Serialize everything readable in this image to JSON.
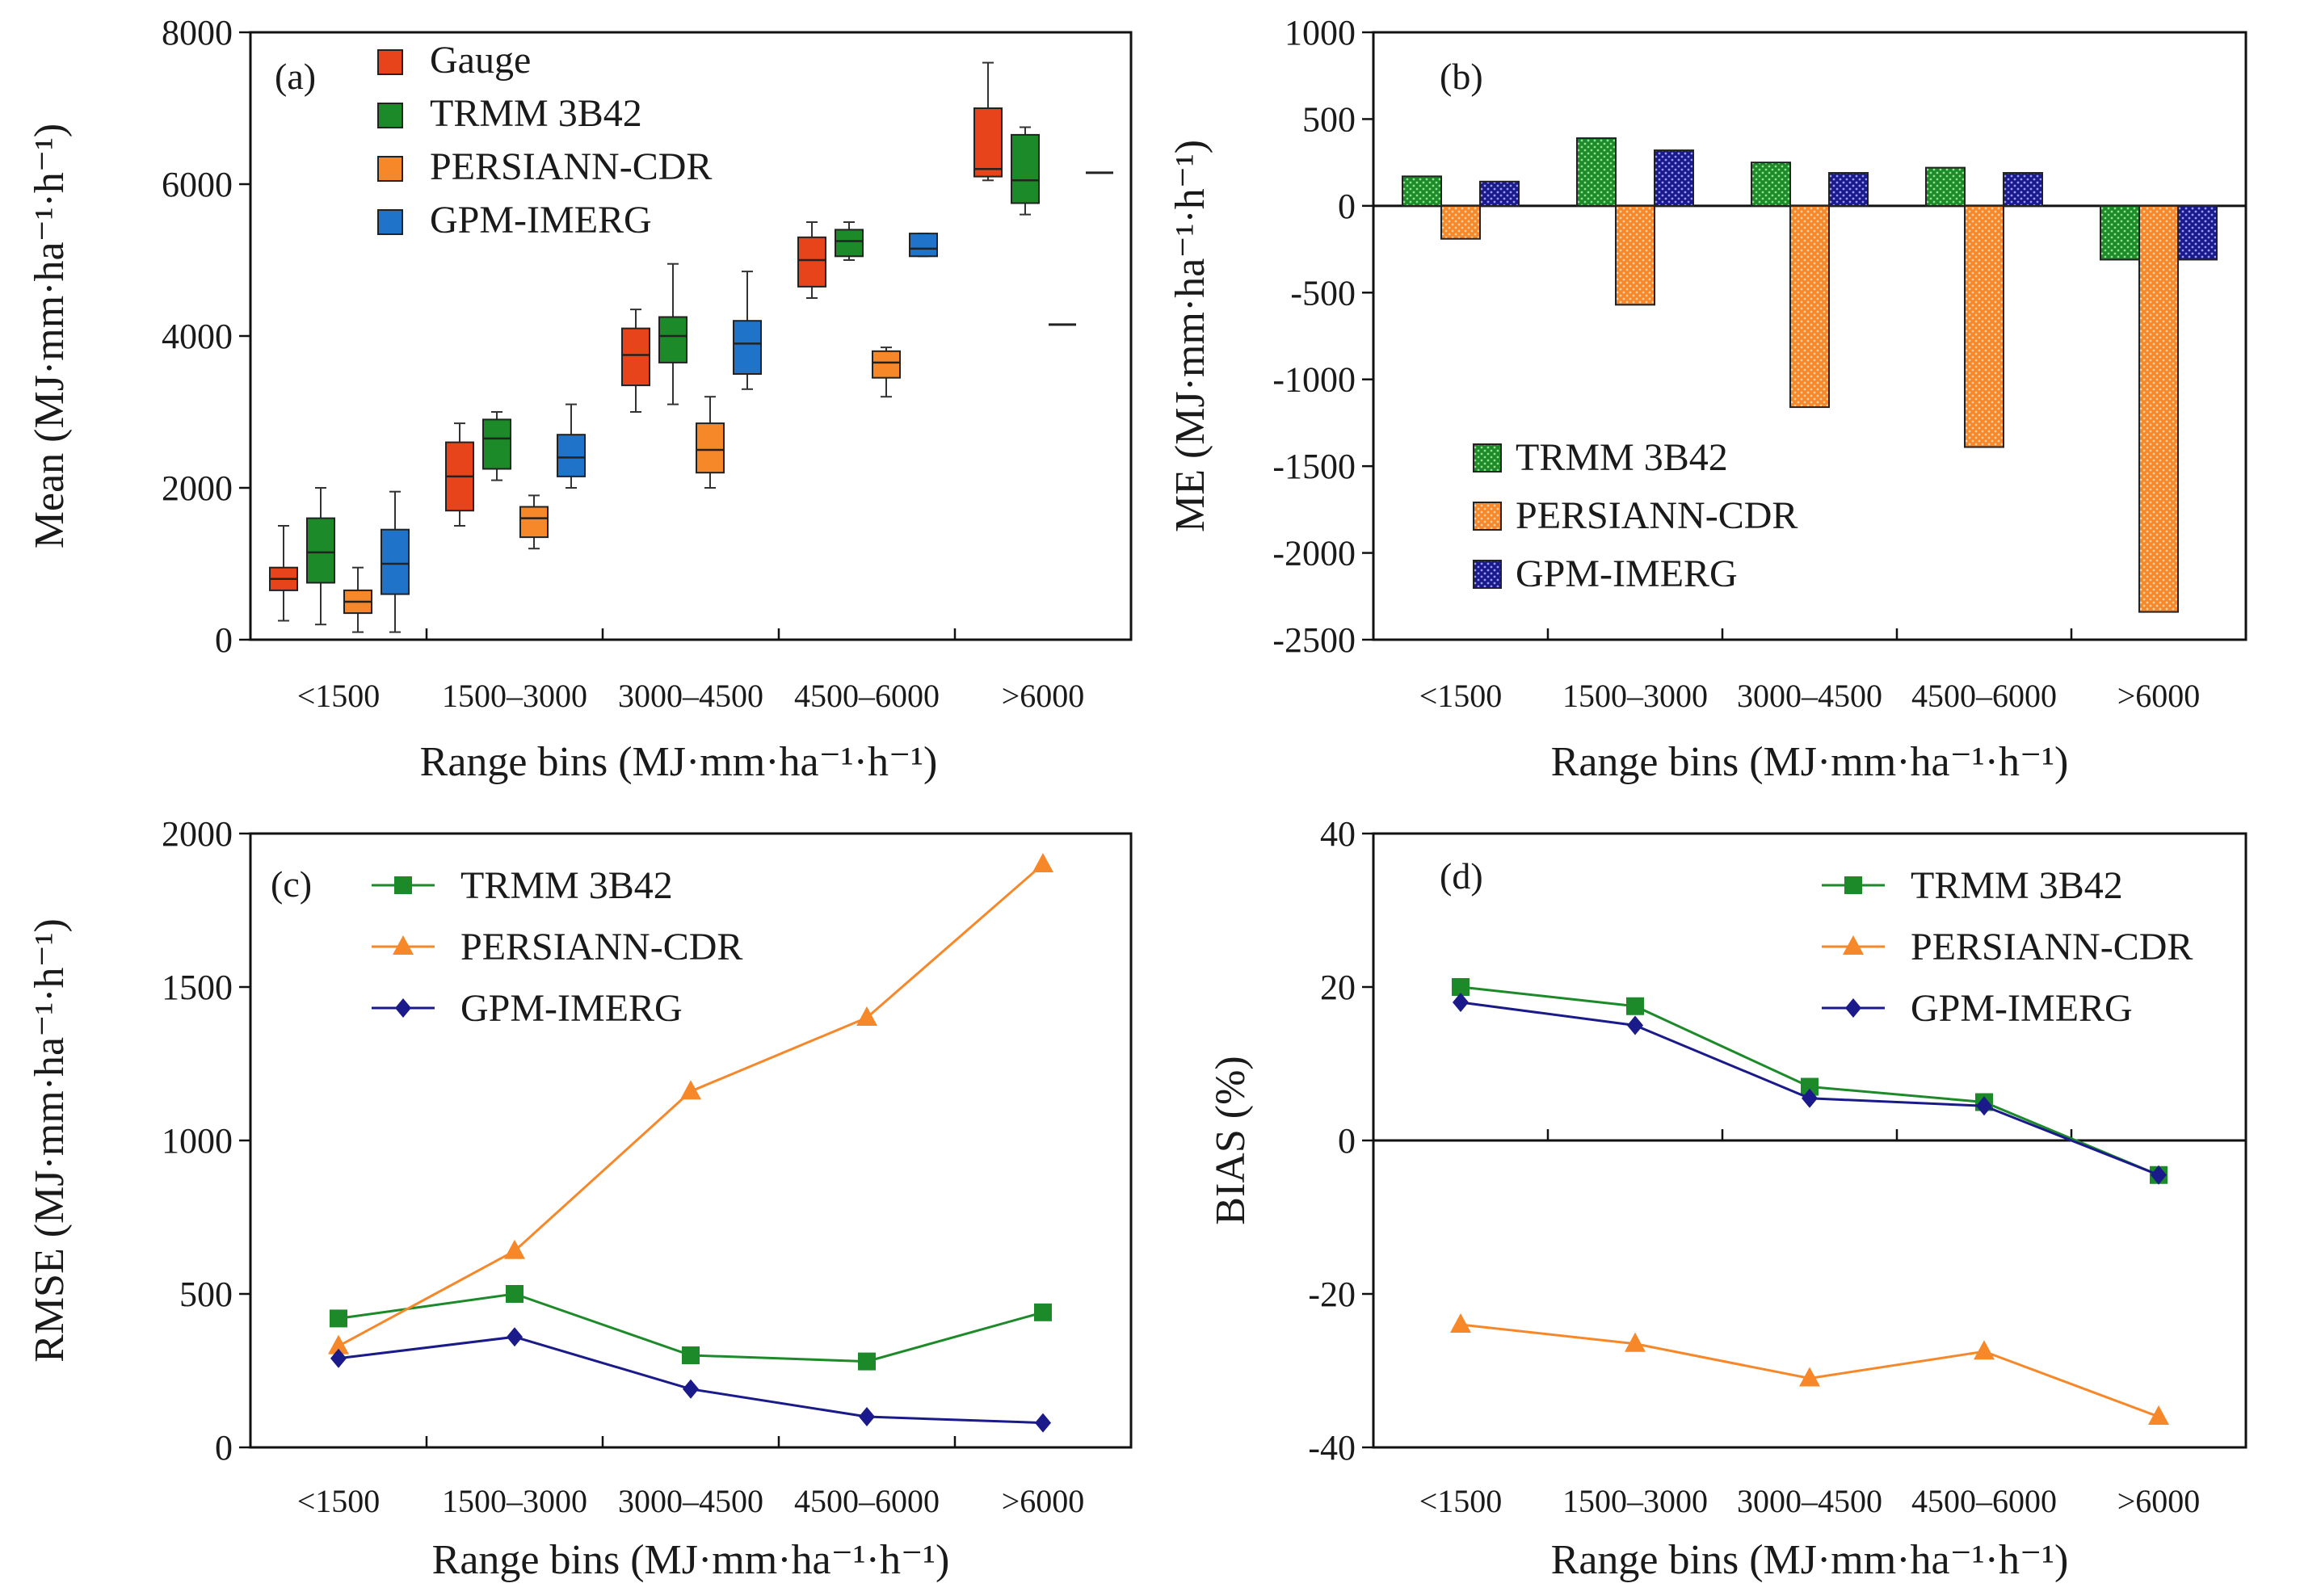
{
  "colors": {
    "gauge": "#e8441c",
    "trmm": "#1d8a2a",
    "persiann": "#f7882a",
    "gpm": "#1f74c9",
    "gpm_dark": "#1a1a8a",
    "axis": "#111111"
  },
  "chart_data": [
    {
      "panel": "(a)",
      "type": "box",
      "ylabel": "Mean (MJ·mm·ha⁻¹·h⁻¹)",
      "xlabel": "Range bins (MJ·mm·ha⁻¹·h⁻¹)",
      "categories": [
        "<1500",
        "1500–3000",
        "3000–4500",
        "4500–6000",
        ">6000"
      ],
      "ylim": [
        0,
        8000
      ],
      "yticks": [
        "8000",
        "6000",
        "4000",
        "2000",
        "0"
      ],
      "series": [
        {
          "name": "Gauge",
          "boxes": [
            {
              "min": 250,
              "q1": 650,
              "median": 800,
              "q3": 950,
              "max": 1500
            },
            {
              "min": 1500,
              "q1": 1700,
              "median": 2150,
              "q3": 2600,
              "max": 2850
            },
            {
              "min": 3000,
              "q1": 3350,
              "median": 3750,
              "q3": 4100,
              "max": 4350
            },
            {
              "min": 4500,
              "q1": 4650,
              "median": 5000,
              "q3": 5300,
              "max": 5500
            },
            {
              "min": 6050,
              "q1": 6100,
              "median": 6200,
              "q3": 7000,
              "max": 7600
            }
          ]
        },
        {
          "name": "TRMM 3B42",
          "boxes": [
            {
              "min": 200,
              "q1": 750,
              "median": 1150,
              "q3": 1600,
              "max": 2000
            },
            {
              "min": 2100,
              "q1": 2250,
              "median": 2650,
              "q3": 2900,
              "max": 3000
            },
            {
              "min": 3100,
              "q1": 3650,
              "median": 4000,
              "q3": 4250,
              "max": 4950
            },
            {
              "min": 5000,
              "q1": 5050,
              "median": 5250,
              "q3": 5400,
              "max": 5500
            },
            {
              "min": 5600,
              "q1": 5750,
              "median": 6050,
              "q3": 6650,
              "max": 6750
            }
          ]
        },
        {
          "name": "PERSIANN-CDR",
          "boxes": [
            {
              "min": 100,
              "q1": 350,
              "median": 500,
              "q3": 650,
              "max": 950
            },
            {
              "min": 1200,
              "q1": 1350,
              "median": 1600,
              "q3": 1750,
              "max": 1900
            },
            {
              "min": 2000,
              "q1": 2200,
              "median": 2500,
              "q3": 2850,
              "max": 3200
            },
            {
              "min": 3200,
              "q1": 3450,
              "median": 3650,
              "q3": 3800,
              "max": 3850
            },
            {
              "min": 4150,
              "q1": 4150,
              "median": 4150,
              "q3": 4150,
              "max": 4150
            }
          ]
        },
        {
          "name": "GPM-IMERG",
          "boxes": [
            {
              "min": 100,
              "q1": 600,
              "median": 1000,
              "q3": 1450,
              "max": 1950
            },
            {
              "min": 2000,
              "q1": 2150,
              "median": 2400,
              "q3": 2700,
              "max": 3100
            },
            {
              "min": 3300,
              "q1": 3500,
              "median": 3900,
              "q3": 4200,
              "max": 4850
            },
            {
              "min": 5050,
              "q1": 5050,
              "median": 5150,
              "q3": 5350,
              "max": 5350
            },
            {
              "min": 6150,
              "q1": 6150,
              "median": 6150,
              "q3": 6150,
              "max": 6150
            }
          ]
        }
      ]
    },
    {
      "panel": "(b)",
      "type": "bar",
      "ylabel": "ME (MJ·mm·ha⁻¹·h⁻¹)",
      "xlabel": "Range bins (MJ·mm·ha⁻¹·h⁻¹)",
      "categories": [
        "<1500",
        "1500–3000",
        "3000–4500",
        "4500–6000",
        ">6000"
      ],
      "ylim": [
        -2500,
        1000
      ],
      "yticks": [
        "1000",
        "500",
        "0",
        "-500",
        "-1000",
        "-1500",
        "-2000",
        "-2500"
      ],
      "legend_position": "bottom-left",
      "series": [
        {
          "name": "TRMM 3B42",
          "values": [
            170,
            390,
            250,
            220,
            -310
          ]
        },
        {
          "name": "PERSIANN-CDR",
          "values": [
            -190,
            -570,
            -1160,
            -1390,
            -2340
          ]
        },
        {
          "name": "GPM-IMERG",
          "values": [
            140,
            320,
            190,
            190,
            -310
          ]
        }
      ]
    },
    {
      "panel": "(c)",
      "type": "line",
      "ylabel": "RMSE (MJ·mm·ha⁻¹·h⁻¹)",
      "xlabel": "Range bins (MJ·mm·ha⁻¹·h⁻¹)",
      "categories": [
        "<1500",
        "1500–3000",
        "3000–4500",
        "4500–6000",
        ">6000"
      ],
      "ylim": [
        0,
        2000
      ],
      "yticks": [
        "2000",
        "1500",
        "1000",
        "500",
        "0"
      ],
      "legend_position": "top-left",
      "series": [
        {
          "name": "TRMM 3B42",
          "marker": "square",
          "values": [
            420,
            500,
            300,
            280,
            440
          ]
        },
        {
          "name": "PERSIANN-CDR",
          "marker": "triangle",
          "values": [
            330,
            640,
            1160,
            1400,
            1900
          ]
        },
        {
          "name": "GPM-IMERG",
          "marker": "diamond",
          "values": [
            290,
            360,
            190,
            100,
            80
          ]
        }
      ]
    },
    {
      "panel": "(d)",
      "type": "line",
      "ylabel": "BIAS (%)",
      "xlabel": "Range bins (MJ·mm·ha⁻¹·h⁻¹)",
      "categories": [
        "<1500",
        "1500–3000",
        "3000–4500",
        "4500–6000",
        ">6000"
      ],
      "ylim": [
        -40,
        40
      ],
      "yticks": [
        "40",
        "20",
        "0",
        "-20",
        "-40"
      ],
      "legend_position": "top-right",
      "series": [
        {
          "name": "TRMM 3B42",
          "marker": "square",
          "values": [
            20,
            17.5,
            7,
            5,
            -4.5
          ]
        },
        {
          "name": "PERSIANN-CDR",
          "marker": "triangle",
          "values": [
            -24,
            -26.5,
            -31,
            -27.5,
            -36
          ]
        },
        {
          "name": "GPM-IMERG",
          "marker": "diamond",
          "values": [
            18,
            15,
            5.5,
            4.5,
            -4.5
          ]
        }
      ]
    }
  ]
}
